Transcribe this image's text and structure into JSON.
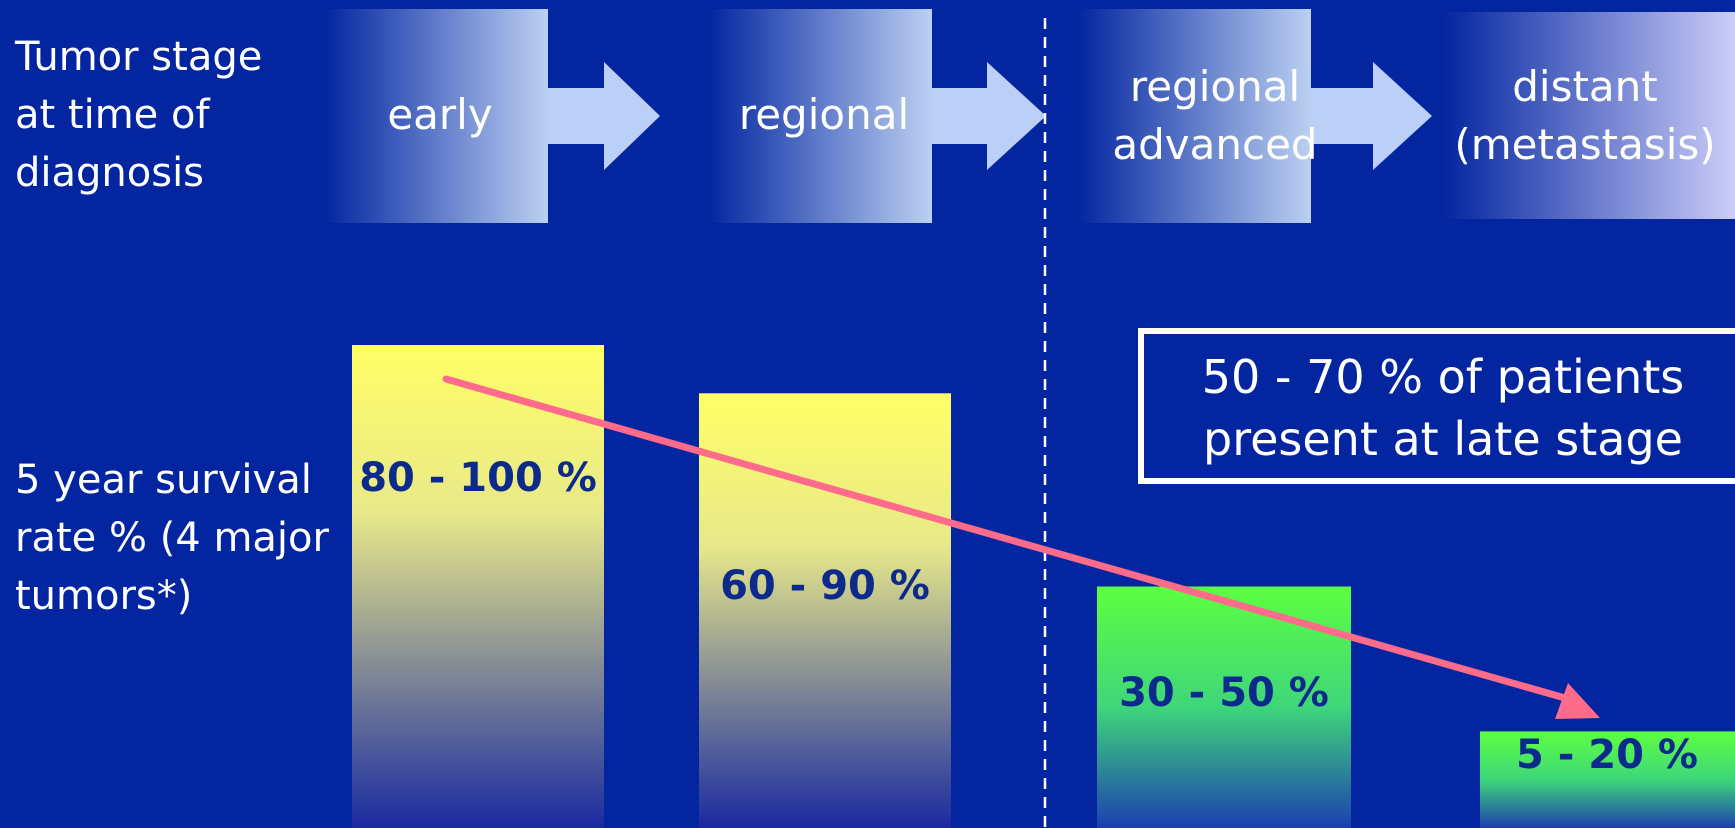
{
  "colors": {
    "background": "#0326a0",
    "box_gradient_start": "#0326a0",
    "box_gradient_end": "#bcd0f2",
    "last_box_gradient_end": "#d2d2fb",
    "arrow": "#bccff6",
    "early_bar_top": "#ffff66",
    "late_bar_top": "#5cff40",
    "trend_arrow": "#ff6b8a",
    "bar_label": "#0c2a8c",
    "divider": "#ffffff"
  },
  "row_labels": {
    "stage_lines": [
      "Tumor stage",
      "at time of",
      "diagnosis"
    ],
    "survival_lines": [
      "5 year survival",
      "rate % (4 major",
      "tumors*)"
    ]
  },
  "callout": {
    "lines": [
      "50 - 70 % of patients",
      "present at late stage"
    ]
  },
  "chart_data": {
    "type": "bar",
    "categories": [
      "early",
      "regional",
      "regional advanced",
      "distant (metastasis)"
    ],
    "category_lines": [
      [
        "early"
      ],
      [
        "regional"
      ],
      [
        "regional",
        "advanced"
      ],
      [
        "distant",
        "(metastasis)"
      ]
    ],
    "value_ranges": [
      [
        80,
        100
      ],
      [
        60,
        90
      ],
      [
        30,
        50
      ],
      [
        5,
        20
      ]
    ],
    "value_labels": [
      "80 - 100 %",
      "60 - 90 %",
      "30 - 50 %",
      "5 - 20 %"
    ],
    "xlabel": "Tumor stage at time of diagnosis",
    "ylabel": "5 year survival rate % (4 major tumors*)",
    "ylim": [
      0,
      100
    ],
    "grid": false,
    "legend": "none",
    "stage_groups": [
      "early-stage",
      "early-stage",
      "late-stage",
      "late-stage"
    ],
    "divider_after_index": 1,
    "trend_arrow": "decreasing from early to distant"
  }
}
